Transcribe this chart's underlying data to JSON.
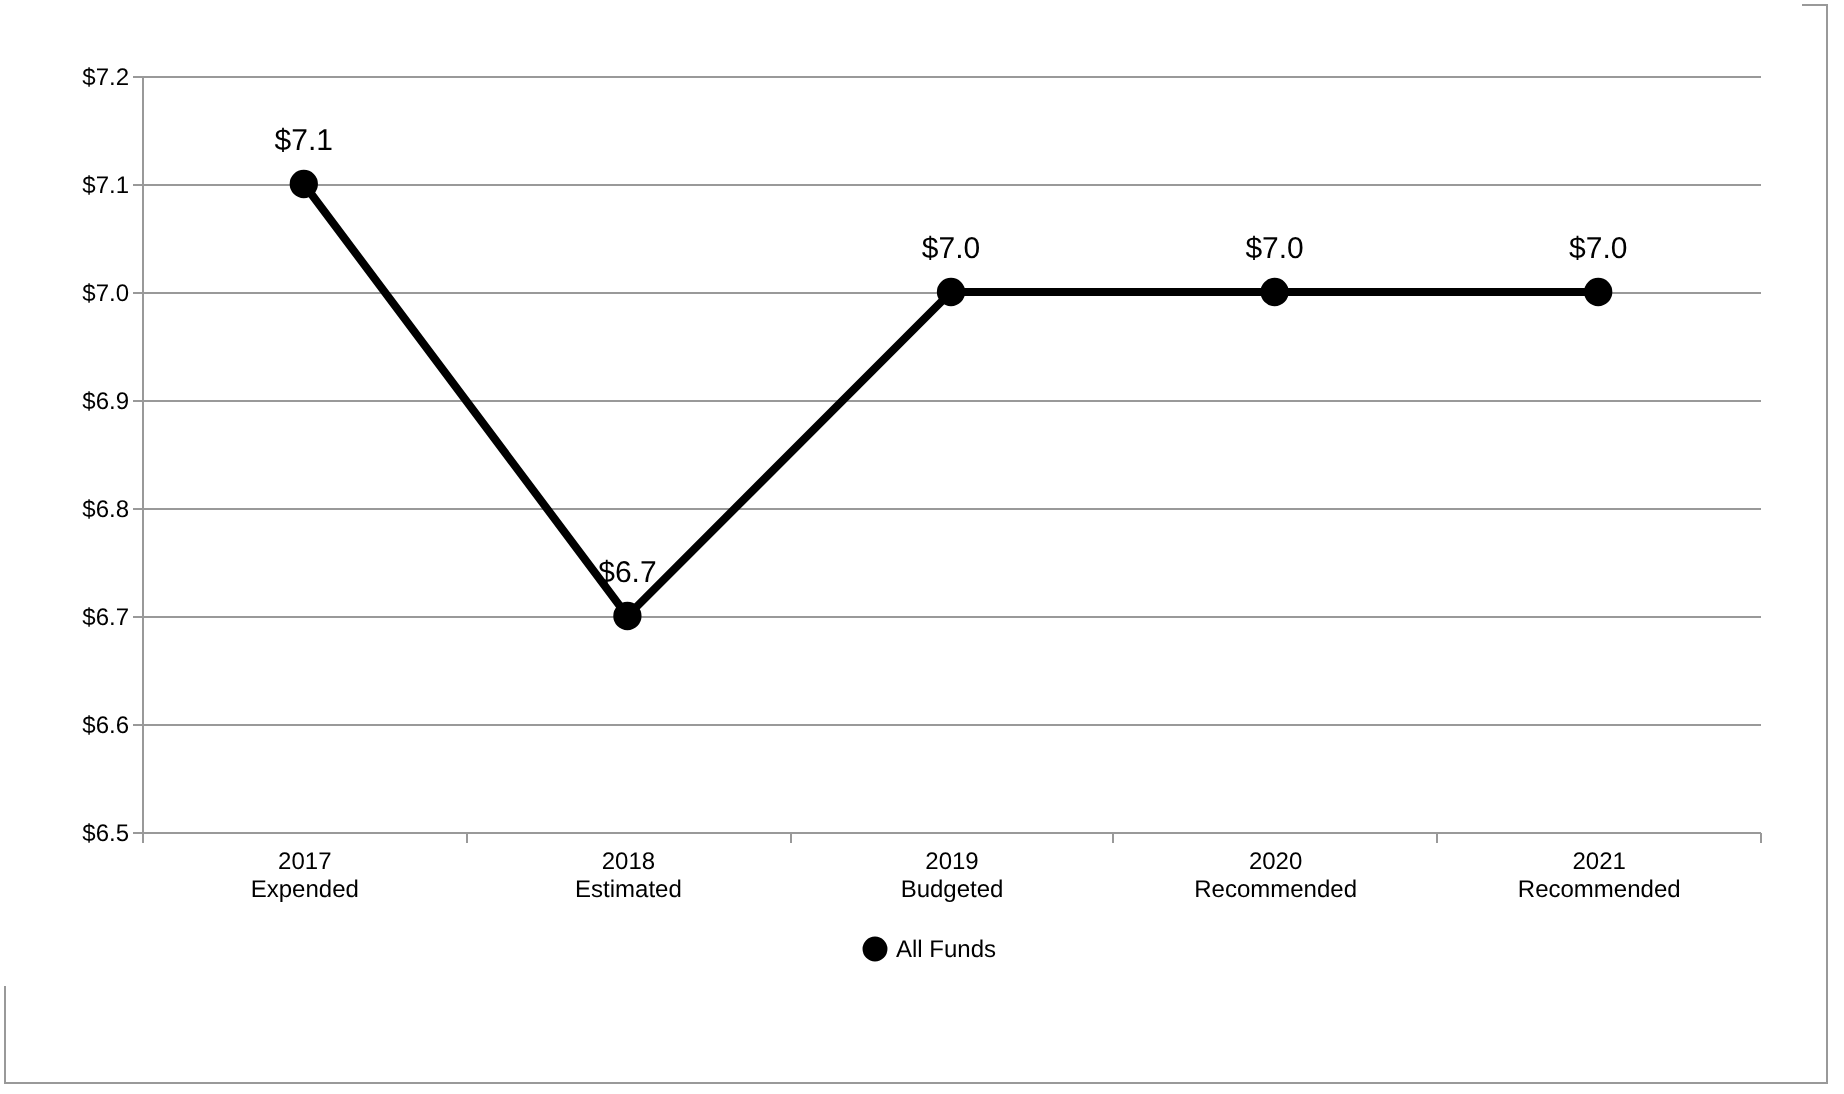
{
  "chart_data": {
    "type": "line",
    "categories": [
      "2017\nExpended",
      "2018\nEstimated",
      "2019\nBudgeted",
      "2020\nRecommended",
      "2021\nRecommended"
    ],
    "series": [
      {
        "name": "All Funds",
        "color": "#000000",
        "values": [
          7.1,
          6.7,
          7.0,
          7.0,
          7.0
        ],
        "value_labels": [
          "$7.1",
          "$6.7",
          "$7.0",
          "$7.0",
          "$7.0"
        ]
      }
    ],
    "ylim": [
      6.5,
      7.2
    ],
    "yticks": [
      {
        "value": 6.5,
        "label": "$6.5"
      },
      {
        "value": 6.6,
        "label": "$6.6"
      },
      {
        "value": 6.7,
        "label": "$6.7"
      },
      {
        "value": 6.8,
        "label": "$6.8"
      },
      {
        "value": 6.9,
        "label": "$6.9"
      },
      {
        "value": 7.0,
        "label": "$7.0"
      },
      {
        "value": 7.1,
        "label": "$7.1"
      },
      {
        "value": 7.2,
        "label": "$7.2"
      }
    ],
    "grid": "y",
    "legend": "bottom",
    "marker": "circle",
    "line_style": "solid"
  }
}
